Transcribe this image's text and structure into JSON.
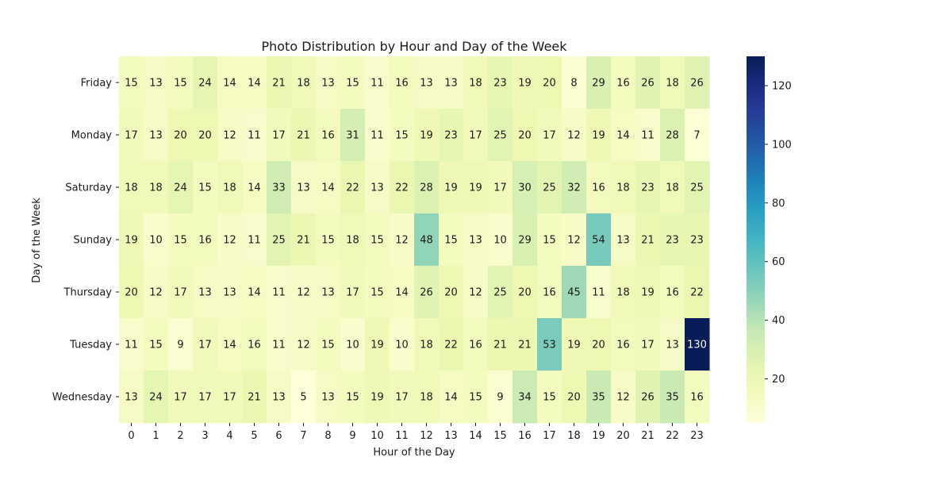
{
  "chart_data": {
    "type": "heatmap",
    "title": "Photo Distribution by Hour and Day of the Week",
    "xlabel": "Hour of the Day",
    "ylabel": "Day of the Week",
    "x_categories": [
      "0",
      "1",
      "2",
      "3",
      "4",
      "5",
      "6",
      "7",
      "8",
      "9",
      "10",
      "11",
      "12",
      "13",
      "14",
      "15",
      "16",
      "17",
      "18",
      "19",
      "20",
      "21",
      "22",
      "23"
    ],
    "y_categories": [
      "Friday",
      "Monday",
      "Saturday",
      "Sunday",
      "Thursday",
      "Tuesday",
      "Wednesday"
    ],
    "values": [
      [
        15,
        13,
        15,
        24,
        14,
        14,
        21,
        18,
        13,
        15,
        11,
        16,
        13,
        13,
        18,
        23,
        19,
        20,
        8,
        29,
        16,
        26,
        18,
        26
      ],
      [
        17,
        13,
        20,
        20,
        12,
        11,
        17,
        21,
        16,
        31,
        11,
        15,
        19,
        23,
        17,
        25,
        20,
        17,
        12,
        19,
        14,
        11,
        28,
        7
      ],
      [
        18,
        18,
        24,
        15,
        18,
        14,
        33,
        13,
        14,
        22,
        13,
        22,
        28,
        19,
        19,
        17,
        30,
        25,
        32,
        16,
        18,
        23,
        18,
        25
      ],
      [
        19,
        10,
        15,
        16,
        12,
        11,
        25,
        21,
        15,
        18,
        15,
        12,
        48,
        15,
        13,
        10,
        29,
        15,
        12,
        54,
        13,
        21,
        23,
        23
      ],
      [
        20,
        12,
        17,
        13,
        13,
        14,
        11,
        12,
        13,
        17,
        15,
        14,
        26,
        20,
        12,
        25,
        20,
        16,
        45,
        11,
        18,
        19,
        16,
        22
      ],
      [
        11,
        15,
        9,
        17,
        14,
        16,
        11,
        12,
        15,
        10,
        19,
        10,
        18,
        22,
        16,
        21,
        21,
        53,
        19,
        20,
        16,
        17,
        13,
        130
      ],
      [
        13,
        24,
        17,
        17,
        17,
        21,
        13,
        5,
        13,
        15,
        19,
        17,
        18,
        14,
        15,
        9,
        34,
        15,
        20,
        35,
        12,
        26,
        35,
        16
      ]
    ],
    "colormap": "YlGnBu",
    "colorbar": {
      "range": [
        5,
        130
      ],
      "ticks": [
        20,
        40,
        60,
        80,
        100,
        120
      ]
    }
  }
}
